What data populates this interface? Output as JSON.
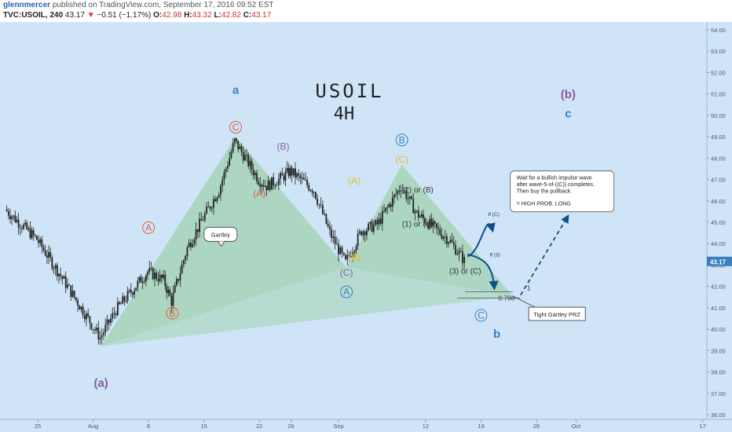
{
  "header": {
    "author": "glennmercer",
    "published": "published on TradingView.com, September 17, 2016 09:52 EST",
    "symbol": "TVC:USOIL, 240",
    "last": "43.17",
    "change": "−0.51 (−1.17%)",
    "open_label": "O:",
    "open": "42.98",
    "high_label": "H:",
    "high": "43.32",
    "low_label": "L:",
    "low": "42.82",
    "close_label": "C:",
    "close": "43.17"
  },
  "colors": {
    "background": "#cfe5f7",
    "candles": "#222222",
    "pattern_fill": "#a6d4b8",
    "orange_wave": "#e06040",
    "purple_wave": "#8a5aa0",
    "yellow_wave": "#e8b830",
    "blue_wave": "#3a7fc0",
    "price_tag": "#3a7fc0"
  },
  "chart_data": {
    "type": "candlestick",
    "title": "USOIL",
    "subtitle": "4H",
    "ylim": [
      36.0,
      54.0
    ],
    "yticks": [
      "54.00",
      "53.00",
      "52.00",
      "51.00",
      "50.00",
      "49.00",
      "48.00",
      "47.00",
      "46.00",
      "45.00",
      "44.00",
      "43.00",
      "42.00",
      "41.00",
      "40.00",
      "39.00",
      "38.00",
      "37.00",
      "36.00"
    ],
    "xticks": [
      "25",
      "Aug",
      "8",
      "15",
      "22",
      "26",
      "Sep",
      "12",
      "19",
      "26",
      "Oct",
      "17"
    ],
    "last_price": "43.17",
    "price_path": [
      {
        "d": "Jul 21",
        "p": 45.6
      },
      {
        "d": "Jul 25",
        "p": 44.2
      },
      {
        "d": "Jul 28",
        "p": 42.5
      },
      {
        "d": "Aug 2",
        "p": 39.6
      },
      {
        "d": "Aug 4",
        "p": 40.9
      },
      {
        "d": "Aug 8",
        "p": 42.7
      },
      {
        "d": "Aug 10",
        "p": 42.3
      },
      {
        "d": "Aug 11",
        "p": 41.3
      },
      {
        "d": "Aug 13",
        "p": 43.8
      },
      {
        "d": "Aug 15",
        "p": 45.2
      },
      {
        "d": "Aug 17",
        "p": 46.5
      },
      {
        "d": "Aug 19",
        "p": 48.8
      },
      {
        "d": "Aug 22",
        "p": 47.0
      },
      {
        "d": "Aug 23",
        "p": 46.7
      },
      {
        "d": "Aug 25",
        "p": 47.1
      },
      {
        "d": "Aug 26",
        "p": 47.4
      },
      {
        "d": "Aug 29",
        "p": 46.5
      },
      {
        "d": "Aug 31",
        "p": 44.5
      },
      {
        "d": "Sep 2",
        "p": 43.1
      },
      {
        "d": "Sep 4",
        "p": 44.6
      },
      {
        "d": "Sep 6",
        "p": 44.9
      },
      {
        "d": "Sep 9",
        "p": 46.7
      },
      {
        "d": "Sep 11",
        "p": 45.4
      },
      {
        "d": "Sep 12",
        "p": 45.1
      },
      {
        "d": "Sep 15",
        "p": 44.2
      },
      {
        "d": "Sep 17",
        "p": 43.2
      }
    ],
    "annotations": [
      {
        "text": "a",
        "color": "blue",
        "d": "Aug 19",
        "p": 51.0
      },
      {
        "text": "(a)",
        "color": "purple",
        "d": "Aug 2",
        "p": 37.3
      },
      {
        "text": "A",
        "color": "orange",
        "circled": true,
        "d": "Aug 8",
        "p": 44.6
      },
      {
        "text": "B",
        "color": "orange",
        "circled": true,
        "d": "Aug 11",
        "p": 40.6
      },
      {
        "text": "C",
        "color": "orange",
        "circled": true,
        "d": "Aug 19",
        "p": 49.3
      },
      {
        "text": "(A)",
        "color": "orange",
        "d": "Aug 22",
        "p": 46.2
      },
      {
        "text": "(B)",
        "color": "purple",
        "d": "Aug 25",
        "p": 48.4
      },
      {
        "text": "(C)",
        "color": "purple",
        "d": "Sep 2",
        "p": 42.5
      },
      {
        "text": "A",
        "color": "blue",
        "circled": true,
        "d": "Sep 2",
        "p": 41.6
      },
      {
        "text": "(A)",
        "color": "yellow",
        "d": "Sep 3",
        "p": 46.8
      },
      {
        "text": "(B)",
        "color": "yellow",
        "d": "Sep 3",
        "p": 43.2
      },
      {
        "text": "B",
        "color": "blue",
        "circled": true,
        "d": "Sep 9",
        "p": 48.7
      },
      {
        "text": "(C)",
        "color": "yellow",
        "d": "Sep 9",
        "p": 47.8
      },
      {
        "text": "(2) or (B)",
        "color": "dark",
        "d": "Sep 11",
        "p": 46.4
      },
      {
        "text": "(1) or (A)",
        "color": "dark",
        "d": "Sep 11",
        "p": 44.8
      },
      {
        "text": "(3) or (C)",
        "color": "dark",
        "d": "Sep 17",
        "p": 42.6
      },
      {
        "text": "C",
        "color": "blue",
        "circled": true,
        "d": "Sep 19",
        "p": 40.5
      },
      {
        "text": "b",
        "color": "blue",
        "d": "Sep 21",
        "p": 39.6
      },
      {
        "text": "(b)",
        "color": "purple",
        "d": "Sep 30",
        "p": 50.8
      },
      {
        "text": "c",
        "color": "blue",
        "d": "Sep 30",
        "p": 49.9
      }
    ],
    "fib": [
      {
        "level": "1",
        "p": 41.75
      },
      {
        "level": "0.786",
        "p": 41.45
      }
    ],
    "callouts": {
      "gartley": "Gartley",
      "prz": "Tight Gartley PRZ",
      "note_1": "Wait for a bullish impulse wave",
      "note_2": "after wave-5-of-((C)) completes.",
      "note_3": "Then buy the pullback.",
      "note_4": "= HIGH PROB. LONG",
      "if_c": "If (C)",
      "if_3": "If (3)"
    }
  }
}
